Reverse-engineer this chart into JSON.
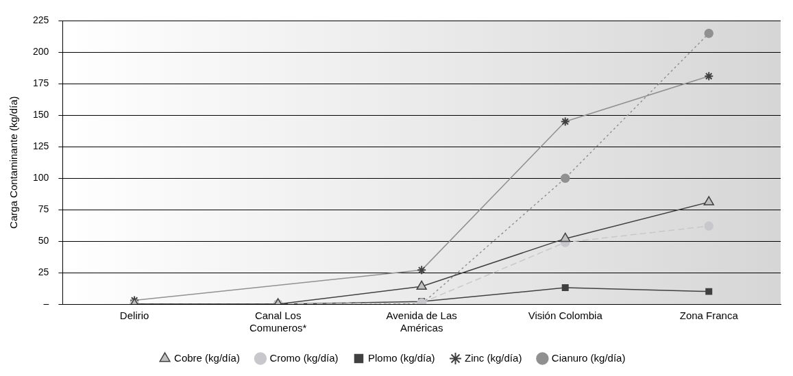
{
  "chart_data": {
    "type": "line",
    "ylabel": "Carga Contaminante (kg/día)",
    "categories": [
      "Delirio",
      "Canal Los\nComuneros*",
      "Avenida de Las\nAméricas",
      "Visión Colombia",
      "Zona Franca"
    ],
    "ylim": [
      0,
      225
    ],
    "yticks": [
      {
        "value": 0,
        "label": "–"
      },
      25,
      50,
      75,
      100,
      125,
      150,
      175,
      200,
      225
    ],
    "grid": "y",
    "legend": "bottom",
    "series": [
      {
        "name": "Cobre (kg/día)",
        "color": "#404040",
        "marker": "triangle",
        "line_style": "solid",
        "values": [
          0,
          0,
          14,
          52,
          81
        ]
      },
      {
        "name": "Cromo (kg/día)",
        "color": "#c8c8cc",
        "marker": "circle",
        "line_style": "dashed",
        "values": [
          0,
          0,
          1,
          49,
          62
        ]
      },
      {
        "name": "Plomo (kg/día)",
        "color": "#404040",
        "marker": "square",
        "line_style": "solid",
        "values": [
          0,
          0,
          2,
          13,
          10
        ]
      },
      {
        "name": "Zinc (kg/día)",
        "color": "#909090",
        "marker": "cross",
        "line_style": "solid",
        "values": [
          3,
          null,
          27,
          145,
          181
        ]
      },
      {
        "name": "Cianuro (kg/día)",
        "color": "#909090",
        "marker": "circle",
        "line_style": "dotted",
        "values": [
          0,
          0,
          0,
          100,
          215
        ]
      }
    ]
  }
}
